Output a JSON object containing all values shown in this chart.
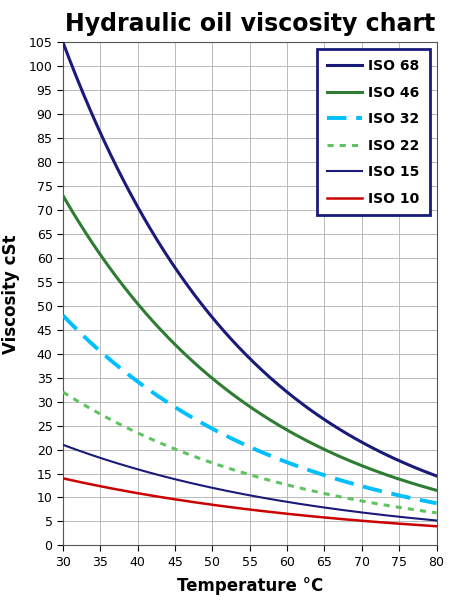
{
  "title": "Hydraulic oil viscosity chart",
  "xlabel": "Temperature °C",
  "ylabel": "Viscosity cSt",
  "xlim": [
    30,
    80
  ],
  "ylim": [
    0,
    105
  ],
  "xticks": [
    30,
    35,
    40,
    45,
    50,
    55,
    60,
    65,
    70,
    75,
    80
  ],
  "yticks": [
    0,
    5,
    10,
    15,
    20,
    25,
    30,
    35,
    40,
    45,
    50,
    55,
    60,
    65,
    70,
    75,
    80,
    85,
    90,
    95,
    100,
    105
  ],
  "series": [
    {
      "label": "ISO 68",
      "color": "#1a1a7a",
      "linestyle": "solid",
      "linewidth": 2.2,
      "at30": 105,
      "at80": 14.5
    },
    {
      "label": "ISO 46",
      "color": "#2e7d32",
      "linestyle": "solid",
      "linewidth": 2.2,
      "at30": 73,
      "at80": 11.5
    },
    {
      "label": "ISO 32",
      "color": "#00BFFF",
      "linestyle": "dashed",
      "linewidth": 2.8,
      "at30": 48,
      "at80": 8.8
    },
    {
      "label": "ISO 22",
      "color": "#5fc45f",
      "linestyle": "dotted",
      "linewidth": 2.2,
      "at30": 32,
      "at80": 6.8
    },
    {
      "label": "ISO 15",
      "color": "#1a1a7a",
      "linestyle": "solid",
      "linewidth": 1.5,
      "at30": 21,
      "at80": 5.2
    },
    {
      "label": "ISO 10",
      "color": "#cc0000",
      "linestyle": "solid",
      "linewidth": 1.8,
      "at30": 14,
      "at80": 4.0
    }
  ],
  "background_color": "#ffffff",
  "grid_color": "#b0b0b0",
  "title_fontsize": 17,
  "label_fontsize": 12,
  "tick_fontsize": 9,
  "legend_fontsize": 10,
  "legend_border_color": "#1a1a7a"
}
